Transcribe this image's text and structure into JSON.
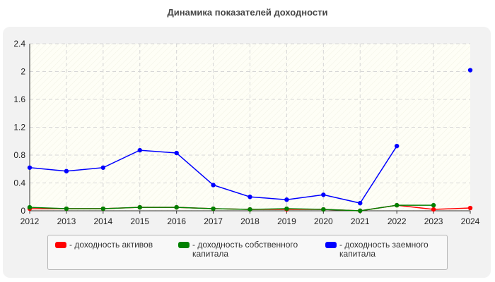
{
  "chart_data": {
    "type": "line",
    "title": "Динамика показателей доходности",
    "xlabel": "",
    "ylabel": "",
    "categories": [
      "2012",
      "2013",
      "2014",
      "2015",
      "2016",
      "2017",
      "2018",
      "2019",
      "2020",
      "2021",
      "2022",
      "2023",
      "2024"
    ],
    "ylim": [
      0,
      2.4
    ],
    "yticks": [
      "0",
      "0.4",
      "0.8",
      "1.2",
      "1.6",
      "2",
      "2.4"
    ],
    "grid": true,
    "legend_position": "bottom",
    "series": [
      {
        "name": "- доходность активов",
        "color": "#ff0000",
        "values": [
          0.03,
          0.03,
          0.03,
          0.05,
          0.05,
          0.03,
          0.02,
          0.02,
          0.02,
          0.0,
          0.08,
          0.02,
          0.04
        ]
      },
      {
        "name": "- доходность собственного\nкапитала",
        "color": "#008000",
        "values": [
          0.05,
          0.03,
          0.03,
          0.05,
          0.05,
          0.03,
          0.02,
          0.03,
          0.02,
          0.0,
          0.08,
          0.08,
          null
        ]
      },
      {
        "name": "- доходность заемного\nкапитала",
        "color": "#0000ff",
        "values": [
          0.62,
          0.57,
          0.62,
          0.87,
          0.83,
          0.37,
          0.2,
          0.16,
          0.23,
          0.11,
          0.93,
          null,
          2.02
        ]
      }
    ]
  }
}
